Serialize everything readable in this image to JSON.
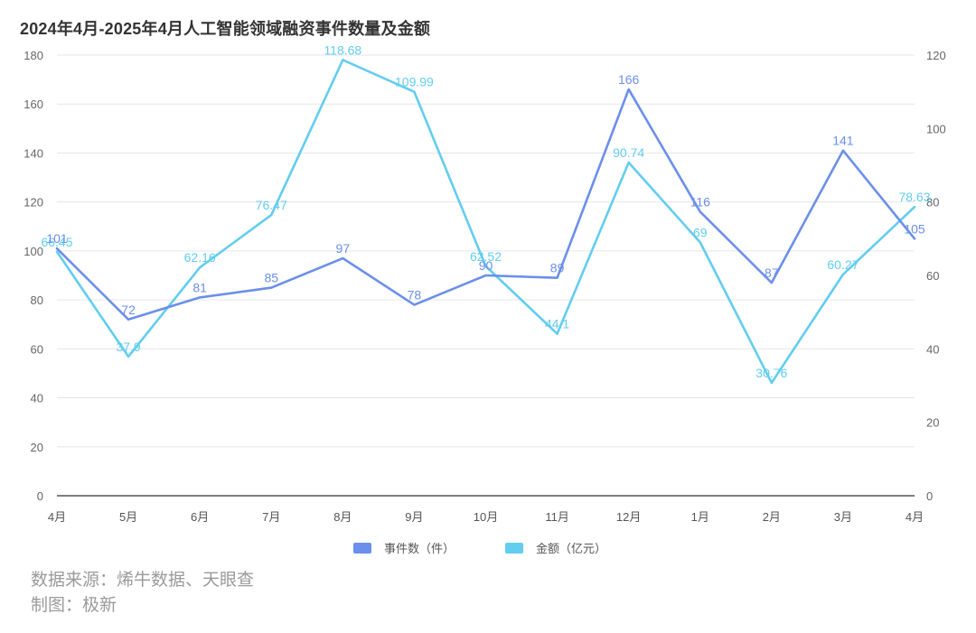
{
  "title": "2024年4月-2025年4月人工智能领域融资事件数量及金额",
  "legend": {
    "events": "事件数（件）",
    "amount": "金额（亿元）"
  },
  "colors": {
    "events": "#6b8fea",
    "amount": "#62cdef"
  },
  "source": {
    "line1": "数据来源：烯牛数据、天眼查",
    "line2": "制图：极新"
  },
  "chart_data": {
    "type": "line",
    "categories": [
      "4月",
      "5月",
      "6月",
      "7月",
      "8月",
      "9月",
      "10月",
      "11月",
      "12月",
      "1月",
      "2月",
      "3月",
      "4月"
    ],
    "series": [
      {
        "name": "事件数（件）",
        "axis": "left",
        "values": [
          101,
          72,
          81,
          85,
          97,
          78,
          90,
          89,
          166,
          116,
          87,
          141,
          105
        ]
      },
      {
        "name": "金额（亿元）",
        "axis": "right",
        "values": [
          66.45,
          37.9,
          62.16,
          76.47,
          118.68,
          109.99,
          62.52,
          44.1,
          90.74,
          69,
          30.76,
          60.27,
          78.63
        ]
      }
    ],
    "yaxis_left": {
      "ticks": [
        0,
        20,
        40,
        60,
        80,
        100,
        120,
        140,
        160,
        180
      ],
      "ylim": [
        0,
        180
      ]
    },
    "yaxis_right": {
      "ticks": [
        0,
        20,
        40,
        60,
        80,
        100,
        120
      ],
      "ylim": [
        0,
        120
      ]
    },
    "grid": true,
    "legend_position": "bottom"
  }
}
